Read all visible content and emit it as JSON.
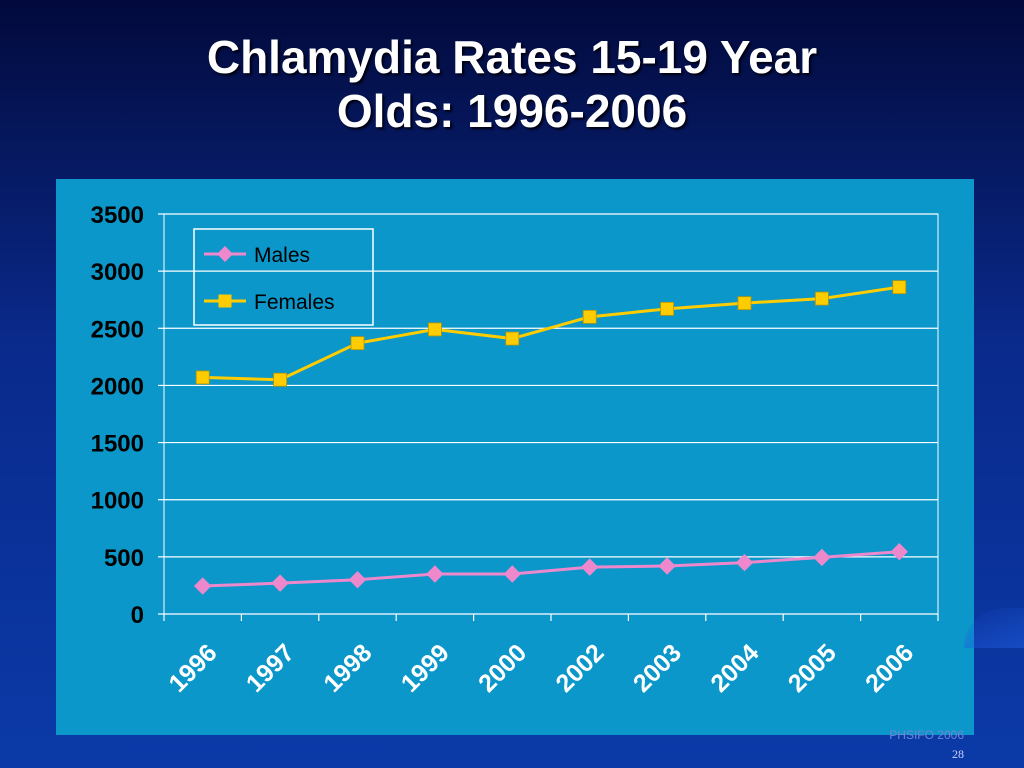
{
  "slide": {
    "title_line1": "Chlamydia Rates 15-19 Year",
    "title_line2": "Olds: 1996-2006",
    "footer_source": "PHSIFO 2006",
    "page_number": "28"
  },
  "colors": {
    "background": "#0a2a8c",
    "chart_background": "#0b97c9",
    "males": "#ee88cc",
    "females": "#ffcc00"
  },
  "chart_data": {
    "type": "line",
    "title": "",
    "xlabel": "",
    "ylabel": "",
    "categories": [
      "1996",
      "1997",
      "1998",
      "1999",
      "2000",
      "2002",
      "2003",
      "2004",
      "2005",
      "2006"
    ],
    "ylim": [
      0,
      3500
    ],
    "yticks": [
      0,
      500,
      1000,
      1500,
      2000,
      2500,
      3000,
      3500
    ],
    "grid": true,
    "legend_position": "top-left",
    "series": [
      {
        "name": "Males",
        "marker": "diamond",
        "color": "#ee88cc",
        "values": [
          245,
          270,
          300,
          350,
          350,
          410,
          420,
          450,
          495,
          545
        ]
      },
      {
        "name": "Females",
        "marker": "square",
        "color": "#ffcc00",
        "values": [
          2070,
          2050,
          2370,
          2490,
          2410,
          2600,
          2670,
          2720,
          2760,
          2860
        ]
      }
    ]
  }
}
